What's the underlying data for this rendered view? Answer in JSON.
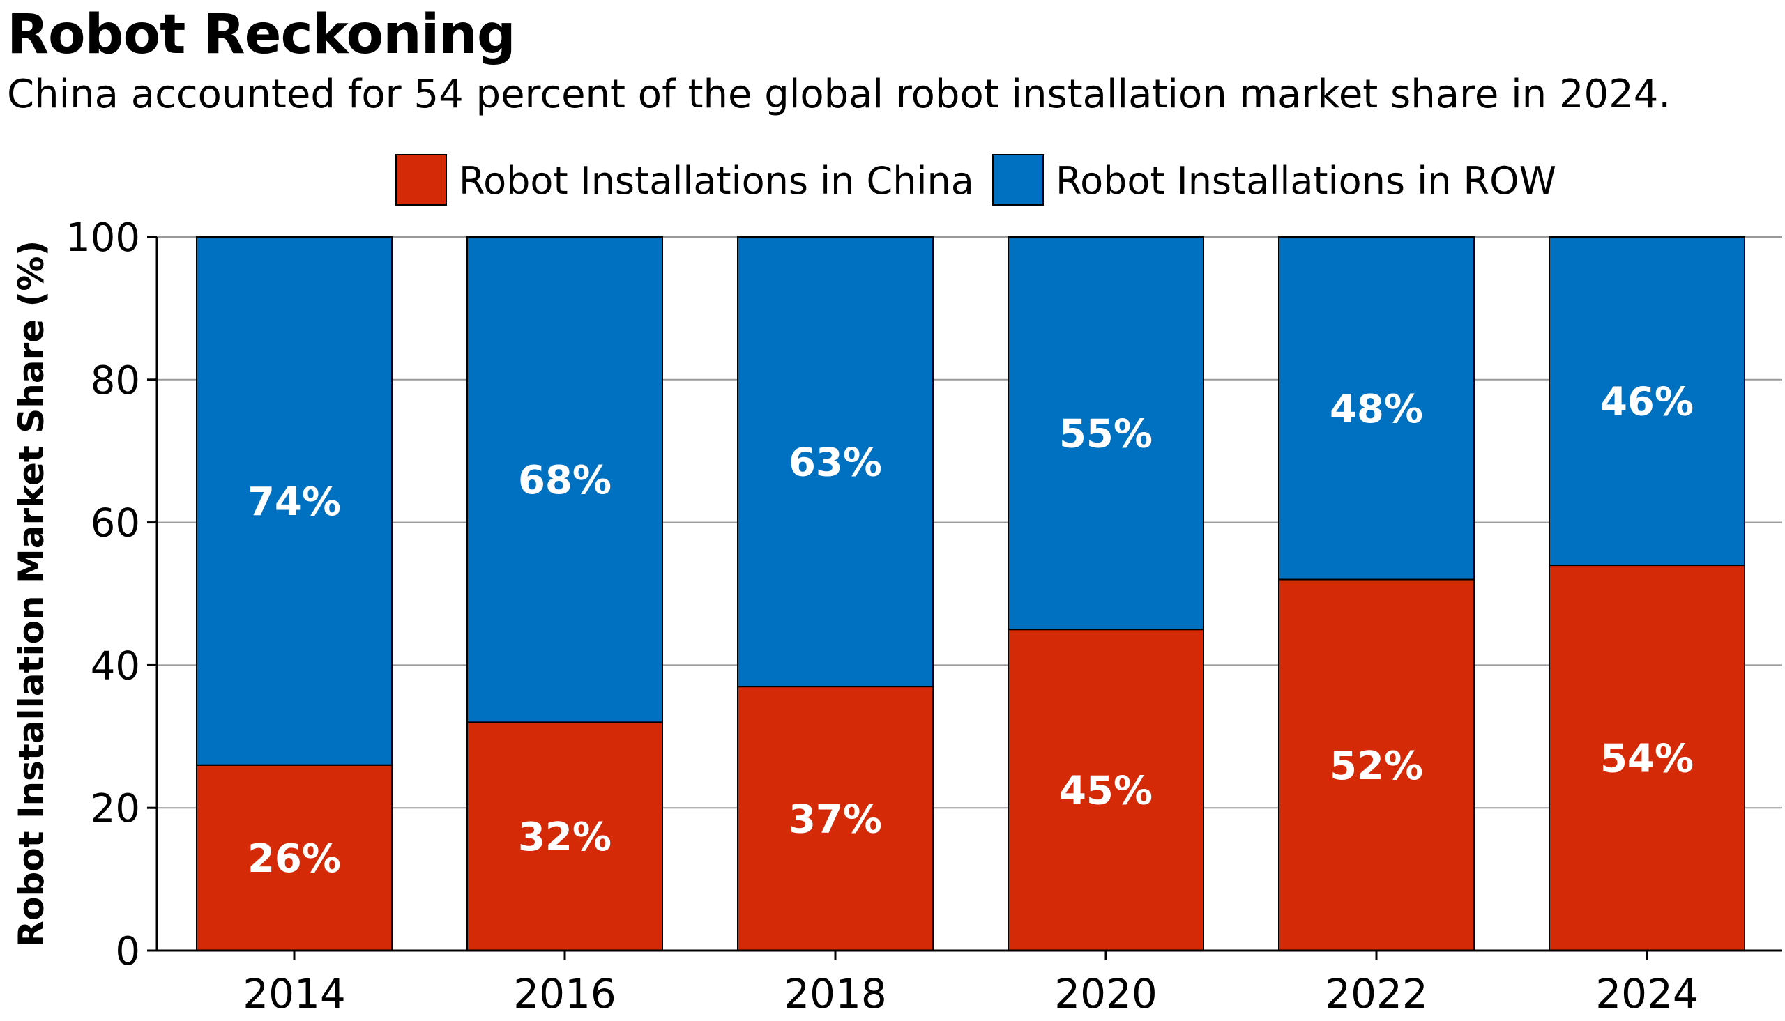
{
  "colors": {
    "china": "#d42a08",
    "row": "#0070c0",
    "grid": "#999999",
    "axis": "#000000"
  },
  "chart_data": {
    "type": "bar",
    "stacked": true,
    "title": "Robot Reckoning",
    "subtitle": "China accounted for 54 percent of the global robot installation market share in 2024.",
    "xlabel": "",
    "ylabel": "Robot Installation Market Share (%)",
    "ylim": [
      0,
      100
    ],
    "yticks": [
      0,
      20,
      40,
      60,
      80,
      100
    ],
    "grid": true,
    "legend_position": "top-center",
    "categories": [
      "2014",
      "2016",
      "2018",
      "2020",
      "2022",
      "2024"
    ],
    "series": [
      {
        "name": "Robot Installations in China",
        "color": "#d42a08",
        "values": [
          26,
          32,
          37,
          45,
          52,
          54
        ],
        "labels": [
          "26%",
          "32%",
          "37%",
          "45%",
          "52%",
          "54%"
        ]
      },
      {
        "name": "Robot Installations in ROW",
        "color": "#0070c0",
        "values": [
          74,
          68,
          63,
          55,
          48,
          46
        ],
        "labels": [
          "74%",
          "68%",
          "63%",
          "55%",
          "48%",
          "46%"
        ]
      }
    ]
  }
}
